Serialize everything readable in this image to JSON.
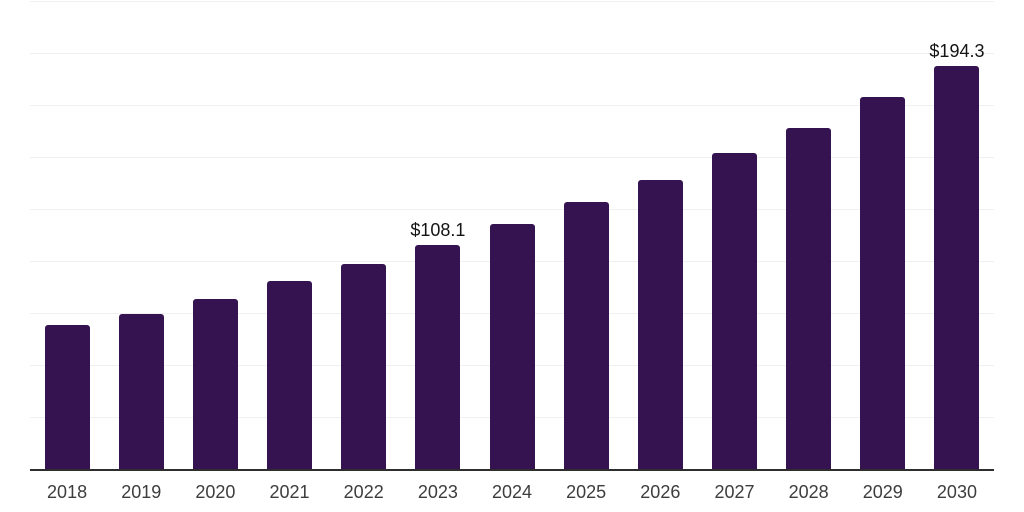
{
  "chart_data": {
    "type": "bar",
    "title": "",
    "xlabel": "",
    "ylabel": "",
    "categories": [
      "2018",
      "2019",
      "2020",
      "2021",
      "2022",
      "2023",
      "2024",
      "2025",
      "2026",
      "2027",
      "2028",
      "2029",
      "2030"
    ],
    "values": [
      69.9,
      75.2,
      82.4,
      90.7,
      99.2,
      108.1,
      118.4,
      128.7,
      139.5,
      152.2,
      164.2,
      179.4,
      194.3
    ],
    "value_labels": [
      "",
      "",
      "",
      "",
      "",
      "$108.1",
      "",
      "",
      "",
      "",
      "",
      "",
      "$194.3"
    ],
    "ylim": [
      0,
      225
    ],
    "gridline_interval": 25,
    "grid": "horizontal-only",
    "legend": "none",
    "bar_color": "#351351",
    "axis_line_color": "#2e2e2e",
    "gridline_color": "#f0f0f0",
    "value_label_color": "#141414",
    "tick_label_color": "#3d3d3d",
    "background_color": "#ffffff"
  }
}
